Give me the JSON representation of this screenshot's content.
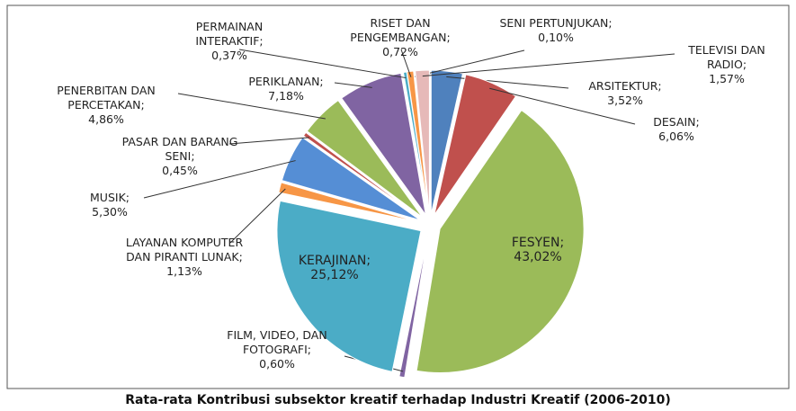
{
  "chart_data": {
    "type": "pie",
    "title": "Rata-rata Kontribusi subsektor kreatif terhadap Industri Kreatif (2006-2010)",
    "categories": [
      "ARSITEKTUR;",
      "DESAIN;",
      "FESYEN;",
      "FILM, VIDEO, DAN FOTOGRAFI;",
      "KERAJINAN;",
      "LAYANAN KOMPUTER DAN PIRANTI LUNAK;",
      "MUSIK;",
      "PASAR DAN BARANG SENI;",
      "PENERBITAN DAN PERCETAKAN;",
      "PERIKLANAN;",
      "PERMAINAN INTERAKTIF;",
      "RISET DAN PENGEMBANGAN;",
      "SENI PERTUNJUKAN;",
      "TELEVISI DAN RADIO;"
    ],
    "values": [
      3.52,
      6.06,
      43.02,
      0.6,
      25.12,
      1.13,
      5.3,
      0.45,
      4.86,
      7.18,
      0.37,
      0.72,
      0.1,
      1.57
    ],
    "value_labels": [
      "3,52%",
      "6,06%",
      "43,02%",
      "0,60%",
      "25,12%",
      "1,13%",
      "5,30%",
      "0,45%",
      "4,86%",
      "7,18%",
      "0,37%",
      "0,72%",
      "0,10%",
      "1,57%"
    ],
    "colors": [
      "#4f81bd",
      "#c0504d",
      "#9bbb59",
      "#8064a2",
      "#4bacc6",
      "#f79646",
      "#558ed5",
      "#c0504d",
      "#9bbb59",
      "#8064a2",
      "#4bacc6",
      "#f79646",
      "#95b3d7",
      "#e6b9b8"
    ]
  }
}
